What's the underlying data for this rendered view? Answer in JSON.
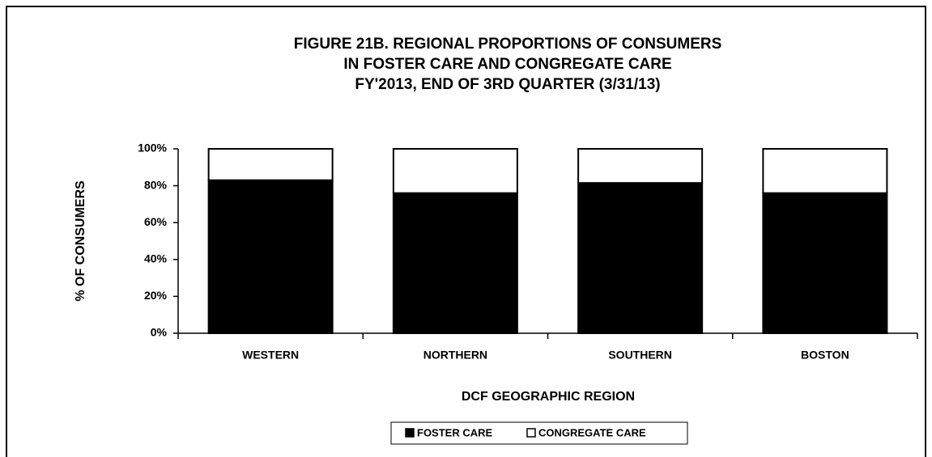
{
  "chart_data": {
    "type": "stacked_bar",
    "title": [
      "FIGURE 21B. REGIONAL PROPORTIONS OF CONSUMERS",
      "IN FOSTER CARE AND CONGREGATE CARE",
      "FY'2013, END OF 3RD QUARTER (3/31/13)"
    ],
    "x_label": "DCF GEOGRAPHIC REGION",
    "y_label": "% OF CONSUMERS",
    "categories": [
      "WESTERN",
      "NORTHERN",
      "SOUTHERN",
      "BOSTON"
    ],
    "series": [
      {
        "name": "FOSTER CARE",
        "color": "#000000",
        "values": [
          83,
          76,
          81.5,
          76
        ]
      },
      {
        "name": "CONGREGATE CARE",
        "color": "#ffffff",
        "values": [
          17,
          24,
          18.5,
          24
        ]
      }
    ],
    "ylim": [
      0,
      100
    ],
    "yticks": [
      {
        "value": 0,
        "label": "0%"
      },
      {
        "value": 20,
        "label": "20%"
      },
      {
        "value": 40,
        "label": "40%"
      },
      {
        "value": 60,
        "label": "60%"
      },
      {
        "value": 80,
        "label": "80%"
      },
      {
        "value": 100,
        "label": "100%"
      }
    ],
    "legend": "bottom"
  }
}
